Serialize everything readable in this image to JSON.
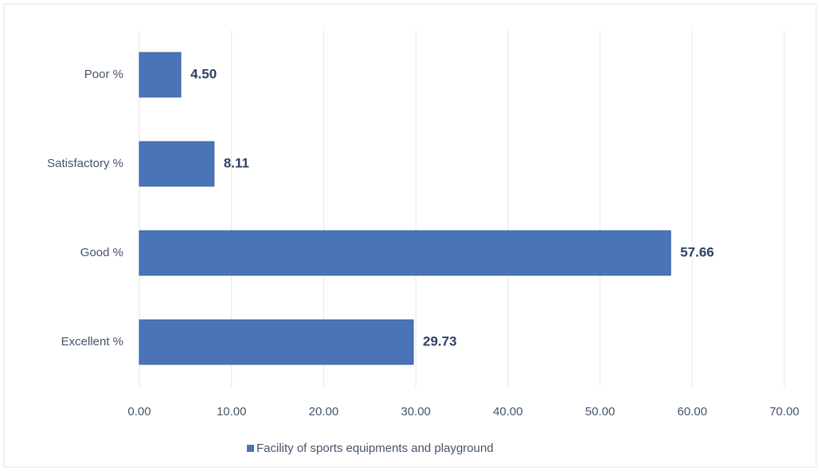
{
  "chart_data": {
    "type": "hbar",
    "categories": [
      "Poor %",
      "Satisfactory %",
      "Good %",
      "Excellent %"
    ],
    "series": [
      {
        "name": "Facility of sports equipments and playground",
        "color": "#4a74b8",
        "values": [
          4.5,
          8.11,
          57.66,
          29.73
        ],
        "value_labels": [
          "4.50",
          "8.11",
          "57.66",
          "29.73"
        ]
      }
    ],
    "xlim": [
      0,
      70
    ],
    "xticks": [
      {
        "value": 0,
        "label": "0.00"
      },
      {
        "value": 10,
        "label": "10.00"
      },
      {
        "value": 20,
        "label": "20.00"
      },
      {
        "value": 30,
        "label": "30.00"
      },
      {
        "value": 40,
        "label": "40.00"
      },
      {
        "value": 50,
        "label": "50.00"
      },
      {
        "value": 60,
        "label": "60.00"
      },
      {
        "value": 70,
        "label": "70.00"
      }
    ],
    "grid": true,
    "legend": "bottom"
  }
}
